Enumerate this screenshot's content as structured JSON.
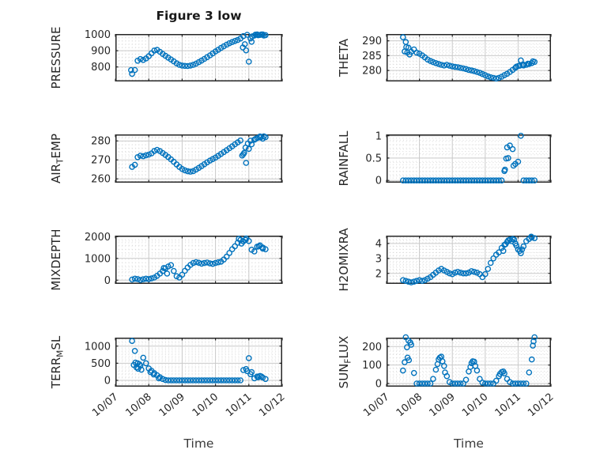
{
  "figure": {
    "title": "Figure 3 low",
    "xlabel": "Time",
    "marker_color": "#0072BD",
    "axis_color": "#262626",
    "major_grid_color": "#c9c9c9",
    "minor_grid_color": "#d9d9d9",
    "xlim": [
      0,
      5
    ],
    "xticks": [
      0,
      1,
      2,
      3,
      4,
      5
    ],
    "xtick_labels": [
      "10/07",
      "10/08",
      "10/09",
      "10/10",
      "10/11",
      "10/12"
    ]
  },
  "chart_data": [
    {
      "type": "scatter",
      "name": "PRESSURE",
      "ylabel": {
        "pre": "PRESSURE",
        "sub": "",
        "post": ""
      },
      "yticks": [
        800,
        900,
        1000
      ],
      "ytick_labels": [
        "800",
        "900",
        "1000"
      ],
      "ylim": [
        710,
        1003
      ],
      "yminor": 20,
      "series": {
        "t0": 0.5,
        "dt": 0.0833333,
        "y": [
          757,
          781,
          838,
          848,
          843,
          852,
          866,
          884,
          901,
          905,
          893,
          880,
          868,
          857,
          846,
          834,
          822,
          813,
          808,
          806,
          805,
          808,
          813,
          820,
          829,
          839,
          849,
          860,
          871,
          883,
          895,
          906,
          917,
          927,
          937,
          946,
          953,
          960,
          966,
          975,
          990,
          902,
          832,
          955,
          993,
          1000,
          997,
          1000,
          996
        ]
      },
      "extra": [
        [
          0.47,
          780
        ],
        [
          3.82,
          920
        ],
        [
          3.88,
          940
        ],
        [
          3.95,
          998
        ],
        [
          4.05,
          975
        ],
        [
          4.1,
          988
        ],
        [
          4.2,
          999
        ],
        [
          4.28,
          995
        ],
        [
          4.38,
          1000
        ],
        [
          4.45,
          993
        ]
      ]
    },
    {
      "type": "scatter",
      "name": "THETA",
      "ylabel": {
        "pre": "THETA",
        "sub": "",
        "post": ""
      },
      "yticks": [
        280,
        285,
        290
      ],
      "ytick_labels": [
        "280",
        "285",
        "290"
      ],
      "ylim": [
        276.3,
        292.3
      ],
      "yminor": 1,
      "series": {
        "t0": 0.5,
        "dt": 0.0833333,
        "y": [
          291.2,
          289.6,
          287.7,
          286.3,
          287.1,
          286.0,
          285.7,
          285.1,
          284.4,
          283.7,
          283.2,
          282.8,
          282.5,
          282.2,
          281.9,
          281.7,
          281.9,
          281.6,
          281.4,
          281.2,
          281.1,
          280.9,
          280.7,
          280.5,
          280.2,
          280.0,
          279.8,
          279.5,
          279.2,
          278.8,
          278.4,
          278.0,
          277.7,
          277.5,
          277.3,
          277.5,
          277.9,
          278.4,
          278.9,
          279.5,
          280.2,
          280.9,
          281.5,
          283.4,
          281.7,
          281.9,
          282.2,
          282.5,
          282.9
        ]
      },
      "extra": [
        [
          0.55,
          286.4
        ],
        [
          0.6,
          287.9
        ],
        [
          0.63,
          286.1
        ],
        [
          0.7,
          285.4
        ],
        [
          3.95,
          281.3
        ],
        [
          4.05,
          281.6
        ],
        [
          4.15,
          282.0
        ],
        [
          4.3,
          282.3
        ],
        [
          4.45,
          283.1
        ]
      ]
    },
    {
      "type": "scatter",
      "name": "AIR_TEMP",
      "ylabel": {
        "pre": "AIR",
        "sub": "T",
        "post": "EMP"
      },
      "yticks": [
        260,
        270,
        280
      ],
      "ytick_labels": [
        "260",
        "270",
        "280"
      ],
      "ylim": [
        258,
        283.4
      ],
      "yminor": 2,
      "series": {
        "t0": 0.5,
        "dt": 0.0833333,
        "y": [
          266.3,
          267.4,
          271.4,
          272.2,
          271.9,
          272.4,
          272.8,
          273.4,
          274.7,
          275.3,
          274.6,
          273.6,
          272.6,
          271.5,
          270.3,
          269.0,
          267.6,
          266.3,
          265.2,
          264.5,
          264.0,
          263.8,
          264.1,
          264.9,
          265.8,
          266.7,
          267.7,
          268.7,
          269.6,
          270.4,
          271.2,
          272.1,
          273.1,
          274.1,
          275.1,
          276.1,
          277.1,
          278.2,
          279.2,
          280.2,
          273.0,
          268.4,
          275.8,
          278.2,
          280.6,
          281.5,
          282.3,
          281.2,
          282.0
        ]
      },
      "extra": [
        [
          3.8,
          272.3
        ],
        [
          3.86,
          273.7
        ],
        [
          3.9,
          276.5
        ],
        [
          3.97,
          278.6
        ],
        [
          4.05,
          280.1
        ],
        [
          4.2,
          281.0
        ],
        [
          4.35,
          281.8
        ],
        [
          4.45,
          282.4
        ]
      ]
    },
    {
      "type": "scatter",
      "name": "RAINFALL",
      "ylabel": {
        "pre": "RAINFALL",
        "sub": "",
        "post": ""
      },
      "yticks": [
        0,
        0.5,
        1
      ],
      "ytick_labels": [
        "0",
        "0.5",
        "1"
      ],
      "ylim": [
        -0.05,
        1.03
      ],
      "yminor": 0.1,
      "series": {
        "t0": 0.5,
        "dt": 0.0833333,
        "y": [
          0,
          0,
          0,
          0,
          0,
          0,
          0,
          0,
          0,
          0,
          0,
          0,
          0,
          0,
          0,
          0,
          0,
          0,
          0,
          0,
          0,
          0,
          0,
          0,
          0,
          0,
          0,
          0,
          0,
          0,
          0,
          0,
          0,
          0,
          0,
          0,
          0,
          0.21,
          0.74,
          0.78,
          0.7,
          0.37,
          0.42,
          1.0,
          0,
          0,
          0,
          0,
          0
        ]
      },
      "extra": [
        [
          3.6,
          0.24
        ],
        [
          3.64,
          0.49
        ],
        [
          3.7,
          0.5
        ],
        [
          3.86,
          0.33
        ]
      ]
    },
    {
      "type": "scatter",
      "name": "MIXDEPTH",
      "ylabel": {
        "pre": "MIXDEPTH",
        "sub": "",
        "post": ""
      },
      "yticks": [
        0,
        1000,
        2000
      ],
      "ytick_labels": [
        "0",
        "1000",
        "2000"
      ],
      "ylim": [
        -171,
        2047
      ],
      "yminor": 200,
      "series": {
        "t0": 0.5,
        "dt": 0.0833333,
        "y": [
          30,
          70,
          50,
          10,
          40,
          70,
          50,
          80,
          120,
          200,
          300,
          420,
          540,
          630,
          690,
          420,
          180,
          120,
          250,
          430,
          580,
          700,
          790,
          830,
          800,
          760,
          790,
          810,
          770,
          750,
          790,
          820,
          850,
          950,
          1080,
          1250,
          1420,
          1560,
          1720,
          1850,
          1780,
          1920,
          1800,
          1400,
          1320,
          1540,
          1600,
          1500,
          1420
        ]
      },
      "extra": [
        [
          1.45,
          560
        ],
        [
          1.55,
          300
        ],
        [
          3.7,
          1900
        ],
        [
          3.78,
          1680
        ],
        [
          3.9,
          1850
        ],
        [
          4.3,
          1560
        ],
        [
          4.42,
          1450
        ]
      ]
    },
    {
      "type": "scatter",
      "name": "H2OMIXRA",
      "ylabel": {
        "pre": "H2OMIXRA",
        "sub": "",
        "post": ""
      },
      "yticks": [
        2,
        3,
        4
      ],
      "ytick_labels": [
        "2",
        "3",
        "4"
      ],
      "ylim": [
        1.3,
        4.52
      ],
      "yminor": 0.2,
      "series": {
        "t0": 0.5,
        "dt": 0.0833333,
        "y": [
          1.55,
          1.5,
          1.45,
          1.4,
          1.45,
          1.5,
          1.55,
          1.5,
          1.55,
          1.65,
          1.75,
          1.9,
          2.05,
          2.2,
          2.3,
          2.2,
          2.1,
          2.0,
          1.95,
          2.05,
          2.1,
          2.05,
          2.0,
          2.0,
          2.05,
          2.15,
          2.1,
          2.05,
          1.95,
          1.75,
          1.95,
          2.3,
          2.7,
          3.0,
          3.25,
          3.4,
          3.7,
          3.9,
          4.1,
          4.25,
          4.3,
          4.0,
          3.6,
          3.35,
          3.8,
          4.15,
          4.3,
          4.4,
          4.35
        ]
      },
      "extra": [
        [
          3.55,
          3.5
        ],
        [
          3.62,
          3.95
        ],
        [
          3.7,
          4.2
        ],
        [
          3.8,
          4.15
        ],
        [
          3.88,
          4.25
        ],
        [
          3.95,
          3.85
        ],
        [
          4.05,
          3.5
        ],
        [
          4.12,
          3.6
        ],
        [
          4.4,
          4.45
        ]
      ]
    },
    {
      "type": "scatter",
      "name": "TERR_MSL",
      "ylabel": {
        "pre": "TERR",
        "sub": "M",
        "post": "SL"
      },
      "yticks": [
        0,
        500,
        1000
      ],
      "ytick_labels": [
        "0",
        "500",
        "1000"
      ],
      "ylim": [
        -185,
        1248
      ],
      "yminor": 100,
      "series": {
        "t0": 0.5,
        "dt": 0.0833333,
        "y": [
          1150,
          860,
          500,
          430,
          660,
          500,
          350,
          280,
          210,
          150,
          90,
          40,
          10,
          0,
          0,
          0,
          0,
          0,
          0,
          0,
          0,
          0,
          0,
          0,
          0,
          0,
          0,
          0,
          0,
          0,
          0,
          0,
          0,
          0,
          0,
          0,
          0,
          0,
          0,
          0,
          300,
          330,
          650,
          240,
          60,
          110,
          130,
          80,
          40
        ]
      },
      "extra": [
        [
          0.55,
          450
        ],
        [
          0.6,
          520
        ],
        [
          0.63,
          380
        ],
        [
          0.68,
          340
        ],
        [
          0.72,
          470
        ],
        [
          0.78,
          310
        ],
        [
          1.05,
          240
        ],
        [
          1.15,
          170
        ],
        [
          1.3,
          60
        ],
        [
          3.95,
          270
        ],
        [
          4.05,
          180
        ],
        [
          4.28,
          90
        ],
        [
          4.38,
          110
        ]
      ]
    },
    {
      "type": "scatter",
      "name": "SUN_FLUX",
      "ylabel": {
        "pre": "SUN",
        "sub": "F",
        "post": "LUX"
      },
      "yticks": [
        0,
        100,
        200
      ],
      "ytick_labels": [
        "0",
        "100",
        "200"
      ],
      "ylim": [
        -17,
        248
      ],
      "yminor": 20,
      "series": {
        "t0": 0.5,
        "dt": 0.0833333,
        "y": [
          70,
          250,
          232,
          210,
          57,
          0,
          0,
          0,
          0,
          0,
          0,
          25,
          75,
          130,
          145,
          95,
          40,
          8,
          0,
          0,
          0,
          0,
          0,
          20,
          65,
          110,
          118,
          70,
          25,
          5,
          0,
          0,
          0,
          0,
          15,
          40,
          62,
          55,
          25,
          8,
          0,
          0,
          0,
          0,
          0,
          0,
          60,
          130,
          250
        ]
      },
      "extra": [
        [
          0.55,
          115
        ],
        [
          0.62,
          196
        ],
        [
          0.64,
          140
        ],
        [
          0.68,
          126
        ],
        [
          0.72,
          222
        ],
        [
          1.55,
          105
        ],
        [
          1.62,
          140
        ],
        [
          1.7,
          120
        ],
        [
          1.78,
          60
        ],
        [
          2.55,
          90
        ],
        [
          2.62,
          120
        ],
        [
          2.7,
          95
        ],
        [
          3.45,
          52
        ],
        [
          3.55,
          65
        ],
        [
          4.45,
          205
        ],
        [
          4.47,
          228
        ]
      ]
    }
  ]
}
